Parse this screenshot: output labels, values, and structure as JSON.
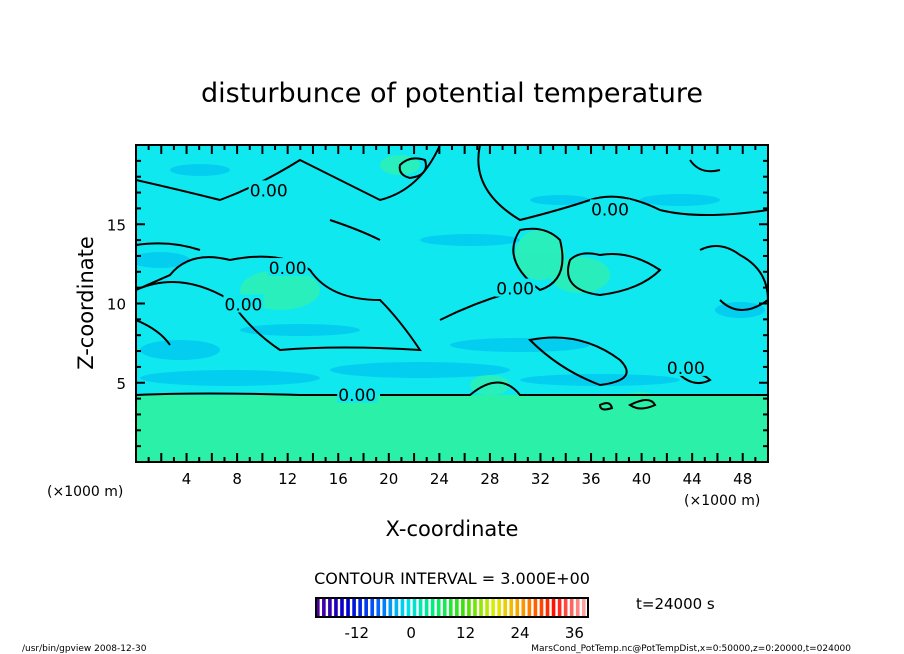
{
  "chart_data": {
    "type": "heatmap",
    "subtype": "filled-contour",
    "title": "disturbunce of potential temperature",
    "xlabel": "X-coordinate",
    "ylabel": "Z-coordinate",
    "x_unit_label": "(×1000 m)",
    "y_unit_label": "(×1000 m)",
    "xlim": [
      0,
      50
    ],
    "ylim": [
      0,
      20
    ],
    "x_ticks": [
      4,
      8,
      12,
      16,
      20,
      24,
      28,
      32,
      36,
      40,
      44,
      48
    ],
    "y_ticks": [
      5,
      10,
      15
    ],
    "contour_interval_label": "CONTOUR INTERVAL = 3.000E+00",
    "contour_labels": [
      {
        "text": "0.00",
        "x": 17.5,
        "z": 4.3
      },
      {
        "text": "0.00",
        "x": 10.5,
        "z": 17.2
      },
      {
        "text": "0.00",
        "x": 12,
        "z": 12.3
      },
      {
        "text": "0.00",
        "x": 8.5,
        "z": 10.0
      },
      {
        "text": "0.00",
        "x": 37.5,
        "z": 16.0
      },
      {
        "text": "0.00",
        "x": 30,
        "z": 11.0
      },
      {
        "text": "0.00",
        "x": 43.5,
        "z": 6.0
      }
    ],
    "field_summary": "values near 0 to -3 (cyan/blue) above z≈4.3 km; values 0 to 3 (green) below z≈4.3 km",
    "colorbar": {
      "ticks": [
        -12,
        0,
        12,
        24,
        36
      ],
      "range": [
        -21,
        39
      ],
      "colors": [
        "#5000a0",
        "#0000d0",
        "#0060ff",
        "#00e0f0",
        "#00f070",
        "#40e000",
        "#e0f000",
        "#ff9000",
        "#ff1000",
        "#ffa0a0"
      ]
    },
    "time_label": "t=24000 s"
  },
  "footer": {
    "program": "/usr/bin/gpview   2008-12-30",
    "source": "MarsCond_PotTemp.nc@PotTempDist,x=0:50000,z=0:20000,t=024000"
  }
}
